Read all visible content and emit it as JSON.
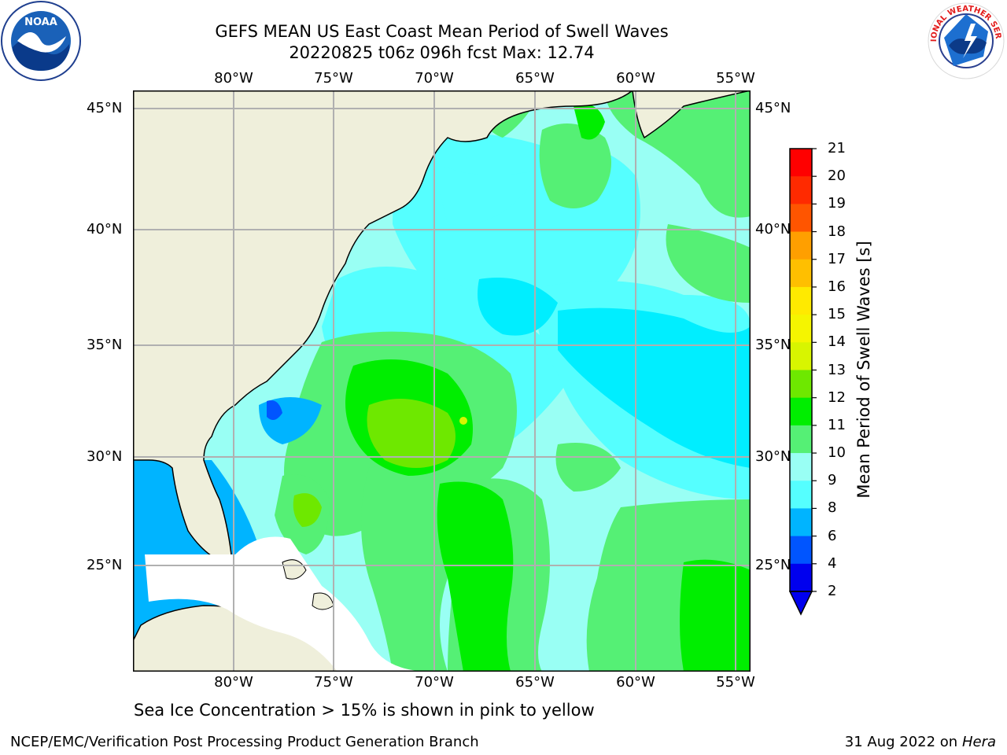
{
  "header": {
    "title_line1": "GEFS MEAN US East Coast Mean Period of Swell Waves",
    "title_line2": "20220825 t06z 096h fcst   Max: 12.74"
  },
  "axes": {
    "lon_labels": [
      "80°W",
      "75°W",
      "70°W",
      "65°W",
      "60°W",
      "55°W"
    ],
    "lat_labels": [
      "45°N",
      "40°N",
      "35°N",
      "30°N",
      "25°N"
    ]
  },
  "colorbar": {
    "title": "Mean Period of Swell Waves [s]",
    "ticks": [
      "21",
      "20",
      "19",
      "18",
      "17",
      "16",
      "15",
      "14",
      "13",
      "12",
      "11",
      "10",
      "9",
      "8",
      "6",
      "4",
      "2"
    ],
    "colors": [
      "#ff0000",
      "#ff2a00",
      "#ff5500",
      "#ff7f00",
      "#ff9f00",
      "#ffbf00",
      "#ffea00",
      "#f5f500",
      "#d8f500",
      "#b5f000",
      "#6ee800",
      "#00ee00",
      "#55f075",
      "#99fff4",
      "#55ffff",
      "#00eeff",
      "#00b4ff",
      "#0055ff",
      "#0000ee"
    ]
  },
  "footer": {
    "note": "Sea Ice Concentration > 15% is shown in pink to yellow",
    "credit": "NCEP/EMC/Verification Post Processing Product Generation Branch",
    "date": "31 Aug 2022 on",
    "machine": "Hera"
  },
  "logos": {
    "noaa_text": "NOAA",
    "nws_text": "NATIONAL WEATHER SERVICE"
  }
}
